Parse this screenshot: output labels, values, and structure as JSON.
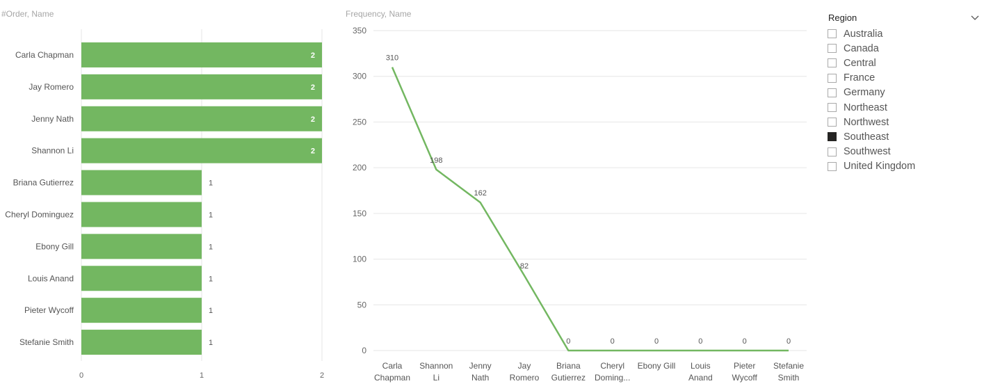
{
  "colors": {
    "bar": "#73b761",
    "line": "#73b761",
    "grid": "#e6e6e6",
    "axis_text": "#666666"
  },
  "chart_data": [
    {
      "type": "bar",
      "orientation": "horizontal",
      "title": "#Order, Name",
      "categories": [
        "Carla Chapman",
        "Jay Romero",
        "Jenny Nath",
        "Shannon Li",
        "Briana Gutierrez",
        "Cheryl Dominguez",
        "Ebony Gill",
        "Louis Anand",
        "Pieter Wycoff",
        "Stefanie Smith"
      ],
      "values": [
        2,
        2,
        2,
        2,
        1,
        1,
        1,
        1,
        1,
        1
      ],
      "xlim": [
        0,
        2
      ],
      "x_ticks": [
        "0",
        "1",
        "2"
      ],
      "grid": true,
      "data_labels": true
    },
    {
      "type": "line",
      "title": "Frequency, Name",
      "categories": [
        [
          "Carla",
          "Chapman"
        ],
        [
          "Shannon",
          "Li"
        ],
        [
          "Jenny",
          "Nath"
        ],
        [
          "Jay",
          "Romero"
        ],
        [
          "Briana",
          "Gutierrez"
        ],
        [
          "Cheryl",
          "Doming..."
        ],
        [
          "Ebony Gill"
        ],
        [
          "Louis",
          "Anand"
        ],
        [
          "Pieter",
          "Wycoff"
        ],
        [
          "Stefanie",
          "Smith"
        ]
      ],
      "values": [
        310,
        198,
        162,
        82,
        0,
        0,
        0,
        0,
        0,
        0
      ],
      "ylim": [
        0,
        350
      ],
      "y_ticks": [
        "0",
        "50",
        "100",
        "150",
        "200",
        "250",
        "300",
        "350"
      ],
      "grid": true,
      "data_labels": true
    }
  ],
  "slicer": {
    "title": "Region",
    "chevron_icon": "chevron-down-icon",
    "items": [
      {
        "label": "Australia",
        "checked": false
      },
      {
        "label": "Canada",
        "checked": false
      },
      {
        "label": "Central",
        "checked": false
      },
      {
        "label": "France",
        "checked": false
      },
      {
        "label": "Germany",
        "checked": false
      },
      {
        "label": "Northeast",
        "checked": false
      },
      {
        "label": "Northwest",
        "checked": false
      },
      {
        "label": "Southeast",
        "checked": true
      },
      {
        "label": "Southwest",
        "checked": false
      },
      {
        "label": "United Kingdom",
        "checked": false
      }
    ]
  }
}
